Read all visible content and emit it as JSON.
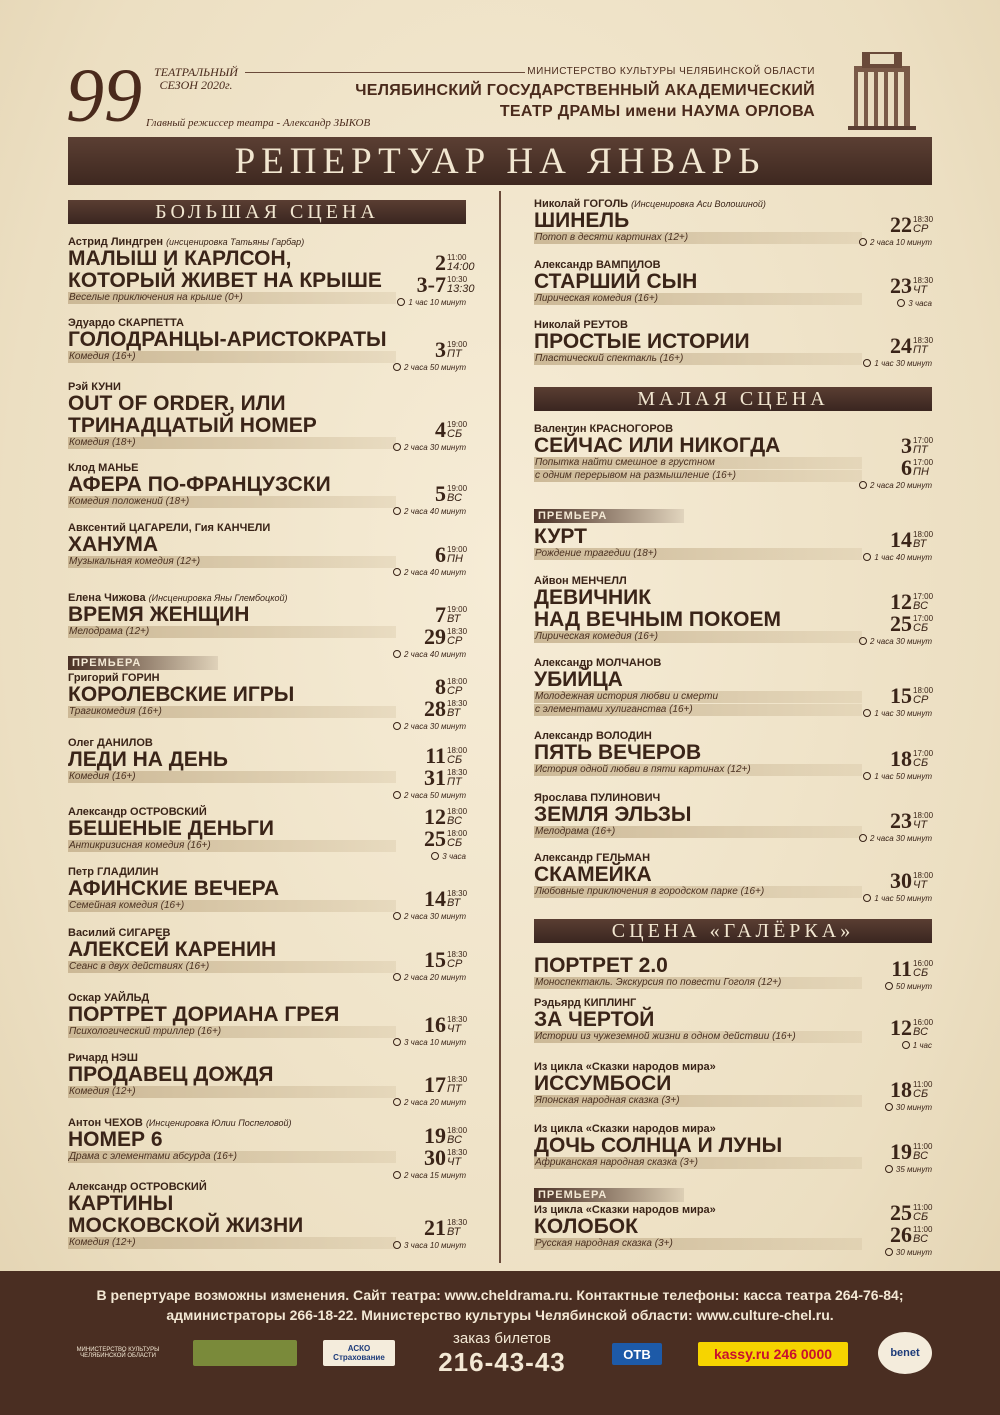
{
  "header": {
    "season_number": "99",
    "season_label": "ТЕАТРАЛЬНЫЙ СЕЗОН 2020г.",
    "director": "Главный режиссер театра - Александр ЗЫКОВ",
    "ministry": "МИНИСТЕРСТВО КУЛЬТУРЫ ЧЕЛЯБИНСКОЙ ОБЛАСТИ",
    "theatre_line1": "ЧЕЛЯБИНСКИЙ ГОСУДАРСТВЕННЫЙ АКАДЕМИЧЕСКИЙ",
    "theatre_line2": "ТЕАТР ДРАМЫ имени НАУМА ОРЛОВА",
    "title": "РЕПЕРТУАР НА ЯНВАРЬ"
  },
  "stages": {
    "big": "БОЛЬШАЯ СЦЕНА",
    "small": "МАЛАЯ СЦЕНА",
    "galerka": "СЦЕНА «ГАЛЁРКА»"
  },
  "premiere_label": "ПРЕМЬЕРА",
  "left": [
    {
      "author": "Астрид Линдгрен",
      "note": "(инсценировка Татьяны Гарбар)",
      "title": "МАЛЫШ И КАРЛСОН,",
      "title2": "КОТОРЫЙ ЖИВЕТ НА КРЫШЕ",
      "genre": "Веселые приключения на крыше (0+)",
      "dur": "1 час 10 минут",
      "dates": [
        {
          "d": "2",
          "t1": "11:00",
          "t2": "14:00"
        },
        {
          "d": "3-7",
          "t1": "10:30",
          "t2": "13:30"
        }
      ]
    },
    {
      "author": "Эдуардо СКАРПЕТТА",
      "title": "ГОЛОДРАНЦЫ-АРИСТОКРАТЫ",
      "genre": "Комедия (16+)",
      "dur": "2 часа 50 минут",
      "dates": [
        {
          "d": "3",
          "t1": "19:00",
          "t2": "ПТ"
        }
      ]
    },
    {
      "author": "Рэй КУНИ",
      "title": "OUT OF ORDER, ИЛИ",
      "title2": "ТРИНАДЦАТЫЙ НОМЕР",
      "genre": "Комедия (18+)",
      "dur": "2 часа 30 минут",
      "dates": [
        {
          "d": "4",
          "t1": "19:00",
          "t2": "СБ"
        }
      ]
    },
    {
      "author": "Клод МАНЬЕ",
      "title": "АФЕРА ПО-ФРАНЦУЗСКИ",
      "genre": "Комедия положений (18+)",
      "dur": "2 часа 40 минут",
      "dates": [
        {
          "d": "5",
          "t1": "19:00",
          "t2": "ВС"
        }
      ]
    },
    {
      "author": "Авксентий ЦАГАРЕЛИ, Гия КАНЧЕЛИ",
      "title": "ХАНУМА",
      "genre": "Музыкальная комедия (12+)",
      "dur": "2 часа 40 минут",
      "dates": [
        {
          "d": "6",
          "t1": "19:00",
          "t2": "ПН"
        }
      ]
    },
    {
      "author": "Елена Чижова",
      "note": "(Инсценировка Яны Глембоцкой)",
      "title": "ВРЕМЯ ЖЕНЩИН",
      "genre": "Мелодрама (12+)",
      "dur": "2 часа 40 минут",
      "dates": [
        {
          "d": "7",
          "t1": "19:00",
          "t2": "ВТ"
        },
        {
          "d": "29",
          "t1": "18:30",
          "t2": "СР"
        }
      ]
    },
    {
      "premiere": true,
      "author": "Григорий ГОРИН",
      "title": "КОРОЛЕВСКИЕ ИГРЫ",
      "genre": "Трагикомедия (16+)",
      "dur": "2 часа 30 минут",
      "dates": [
        {
          "d": "8",
          "t1": "18:00",
          "t2": "СР"
        },
        {
          "d": "28",
          "t1": "18:30",
          "t2": "ВТ"
        }
      ]
    },
    {
      "author": "Олег ДАНИЛОВ",
      "title": "ЛЕДИ НА ДЕНЬ",
      "genre": "Комедия (16+)",
      "dur": "2 часа 50 минут",
      "dates": [
        {
          "d": "11",
          "t1": "18:00",
          "t2": "СБ"
        },
        {
          "d": "31",
          "t1": "18:30",
          "t2": "ПТ"
        }
      ]
    },
    {
      "author": "Александр ОСТРОВСКИЙ",
      "title": "БЕШЕНЫЕ ДЕНЬГИ",
      "genre": "Антикризисная комедия (16+)",
      "dur": "3 часа",
      "dates": [
        {
          "d": "12",
          "t1": "18:00",
          "t2": "ВС"
        },
        {
          "d": "25",
          "t1": "18:00",
          "t2": "СБ"
        }
      ]
    },
    {
      "author": "Петр ГЛАДИЛИН",
      "title": "АФИНСКИЕ ВЕЧЕРА",
      "genre": "Семейная комедия (16+)",
      "dur": "2 часа 30 минут",
      "dates": [
        {
          "d": "14",
          "t1": "18:30",
          "t2": "ВТ"
        }
      ]
    },
    {
      "author": "Василий СИГАРЕВ",
      "title": "АЛЕКСЕЙ КАРЕНИН",
      "genre": "Сеанс в двух действиях (16+)",
      "dur": "2 часа 20 минут",
      "dates": [
        {
          "d": "15",
          "t1": "18:30",
          "t2": "СР"
        }
      ]
    },
    {
      "author": "Оскар УАЙЛЬД",
      "title": "ПОРТРЕТ ДОРИАНА ГРЕЯ",
      "genre": "Психологический триллер (16+)",
      "dur": "3 часа 10 минут",
      "dates": [
        {
          "d": "16",
          "t1": "18:30",
          "t2": "ЧТ"
        }
      ]
    },
    {
      "author": "Ричард НЭШ",
      "title": "ПРОДАВЕЦ ДОЖДЯ",
      "genre": "Комедия (12+)",
      "dur": "2 часа 20 минут",
      "dates": [
        {
          "d": "17",
          "t1": "18:30",
          "t2": "ПТ"
        }
      ]
    },
    {
      "author": "Антон ЧЕХОВ",
      "note": "(Инсценировка Юлии Поспеловой)",
      "title": "НОМЕР 6",
      "genre": "Драма с элементами абсурда (16+)",
      "dur": "2 часа 15 минут",
      "dates": [
        {
          "d": "19",
          "t1": "18:00",
          "t2": "ВС"
        },
        {
          "d": "30",
          "t1": "18:30",
          "t2": "ЧТ"
        }
      ]
    },
    {
      "author": "Александр ОСТРОВСКИЙ",
      "title": "КАРТИНЫ",
      "title2": "МОСКОВСКОЙ ЖИЗНИ",
      "genre": "Комедия (12+)",
      "dur": "3 часа 10 минут",
      "dates": [
        {
          "d": "21",
          "t1": "18:30",
          "t2": "ВТ"
        }
      ]
    }
  ],
  "right_big": [
    {
      "author": "Николай ГОГОЛЬ",
      "note": "(Инсценировка Аси Волошиной)",
      "title": "ШИНЕЛЬ",
      "genre": "Потоп в десяти картинах (12+)",
      "dur": "2 часа 10 минут",
      "dates": [
        {
          "d": "22",
          "t1": "18:30",
          "t2": "СР"
        }
      ]
    },
    {
      "author": "Александр ВАМПИЛОВ",
      "title": "СТАРШИЙ СЫН",
      "genre": "Лирическая комедия (16+)",
      "dur": "3 часа",
      "dates": [
        {
          "d": "23",
          "t1": "18:30",
          "t2": "ЧТ"
        }
      ]
    },
    {
      "author": "Николай РЕУТОВ",
      "title": "ПРОСТЫЕ ИСТОРИИ",
      "genre": "Пластический спектакль (16+)",
      "dur": "1 час 30 минут",
      "dates": [
        {
          "d": "24",
          "t1": "18:30",
          "t2": "ПТ"
        }
      ]
    }
  ],
  "right_small": [
    {
      "author": "Валентин КРАСНОГОРОВ",
      "title": "СЕЙЧАС ИЛИ НИКОГДА",
      "genre": "Попытка найти смешное в грустном",
      "genre2": "с одним перерывом на размышление (16+)",
      "dur": "2 часа 20 минут",
      "dates": [
        {
          "d": "3",
          "t1": "17:00",
          "t2": "ПТ"
        },
        {
          "d": "6",
          "t1": "17:00",
          "t2": "ПН"
        }
      ]
    },
    {
      "premiere": true,
      "title": "КУРТ",
      "genre": "Рождение трагедии (18+)",
      "dur": "1 час 40 минут",
      "dates": [
        {
          "d": "14",
          "t1": "18:00",
          "t2": "ВТ"
        }
      ]
    },
    {
      "author": "Айвон МЕНЧЕЛЛ",
      "title": "ДЕВИЧНИК",
      "title2": "НАД ВЕЧНЫМ ПОКОЕМ",
      "genre": "Лирическая комедия (16+)",
      "dur": "2 часа 30 минут",
      "dates": [
        {
          "d": "12",
          "t1": "17:00",
          "t2": "ВС"
        },
        {
          "d": "25",
          "t1": "17:00",
          "t2": "СБ"
        }
      ]
    },
    {
      "author": "Александр МОЛЧАНОВ",
      "title": "УБИЙЦА",
      "genre": "Молодежная история любви и смерти",
      "genre2": "с элементами хулиганства (16+)",
      "dur": "1 час 30 минут",
      "dates": [
        {
          "d": "15",
          "t1": "18:00",
          "t2": "СР"
        }
      ]
    },
    {
      "author": "Александр ВОЛОДИН",
      "title": "ПЯТЬ ВЕЧЕРОВ",
      "genre": "История одной любви в пяти картинах (12+)",
      "dur": "1 час 50 минут",
      "dates": [
        {
          "d": "18",
          "t1": "17:00",
          "t2": "СБ"
        }
      ]
    },
    {
      "author": "Ярослава ПУЛИНОВИЧ",
      "title": "ЗЕМЛЯ ЭЛЬЗЫ",
      "genre": "Мелодрама (16+)",
      "dur": "2 часа 30 минут",
      "dates": [
        {
          "d": "23",
          "t1": "18:00",
          "t2": "ЧТ"
        }
      ]
    },
    {
      "author": "Александр ГЕЛЬМАН",
      "title": "СКАМЕЙКА",
      "genre": "Любовные приключения в городском парке (16+)",
      "dur": "1 час 50 минут",
      "dates": [
        {
          "d": "30",
          "t1": "18:00",
          "t2": "ЧТ"
        }
      ]
    }
  ],
  "right_galerka": [
    {
      "title": "ПОРТРЕТ 2.0",
      "genre": "Моноспектакль. Экскурсия по повести Гоголя (12+)",
      "dur": "50 минут",
      "dates": [
        {
          "d": "11",
          "t1": "16:00",
          "t2": "СБ"
        }
      ]
    },
    {
      "author": "Рэдьярд КИПЛИНГ",
      "title": "ЗА ЧЕРТОЙ",
      "genre": "Истории из чужеземной жизни в одном действии (16+)",
      "dur": "1 час",
      "dates": [
        {
          "d": "12",
          "t1": "16:00",
          "t2": "ВС"
        }
      ]
    },
    {
      "author": "Из цикла «Сказки народов мира»",
      "title": "ИССУМБОСИ",
      "genre": "Японская народная сказка (3+)",
      "dur": "30 минут",
      "dates": [
        {
          "d": "18",
          "t1": "11:00",
          "t2": "СБ"
        }
      ]
    },
    {
      "author": "Из цикла «Сказки народов мира»",
      "title": "ДОЧЬ СОЛНЦА И ЛУНЫ",
      "genre": "Африканская народная сказка (3+)",
      "dur": "35 минут",
      "dates": [
        {
          "d": "19",
          "t1": "11:00",
          "t2": "ВС"
        }
      ]
    },
    {
      "premiere": true,
      "author": "Из цикла «Сказки народов мира»",
      "title": "КОЛОБОК",
      "genre": "Русская народная сказка (3+)",
      "dur": "30 минут",
      "dates": [
        {
          "d": "25",
          "t1": "11:00",
          "t2": "СБ"
        },
        {
          "d": "26",
          "t1": "11:00",
          "t2": "ВС"
        }
      ]
    }
  ],
  "footer": {
    "line1": "В репертуаре возможны изменения. Сайт театра: www.cheldrama.ru. Контактные телефоны: касса театра 264-76-84;",
    "line2": "администраторы 266-18-22. Министерство культуры Челябинской области: www.culture-chel.ru.",
    "tickets_label": "заказ билетов",
    "tickets_phone": "216-43-43",
    "logos": [
      "МИНИСТЕРСТВО КУЛЬТУРЫ ЧЕЛЯБИНСКОЙ ОБЛАСТИ",
      "АСКО Страхование",
      "ОТВ",
      "kassy.ru 246 0000",
      "benet"
    ]
  }
}
